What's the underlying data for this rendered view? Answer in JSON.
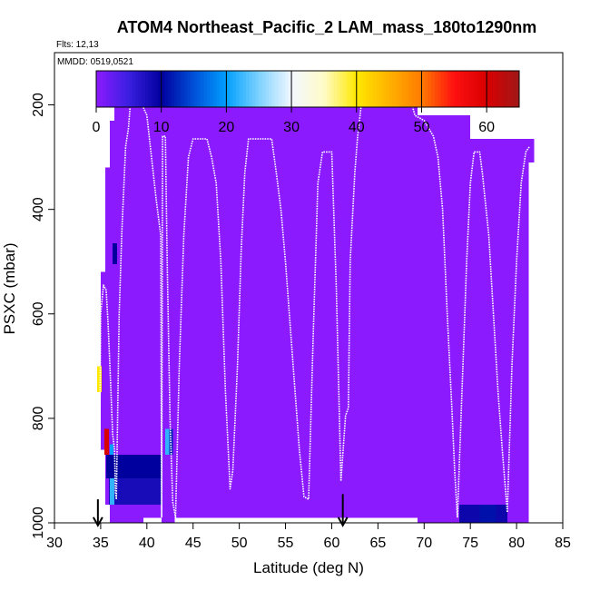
{
  "chart_data": {
    "type": "heatmap",
    "title": "ATOM4 Northeast_Pacific_2 LAM_mass_180to1290nm",
    "flights_label": "Flts: 12,13",
    "date_label": "MMDD: 0519,0521",
    "xlabel": "Latitude (deg N)",
    "ylabel": "PSXC (mbar)",
    "xlim": [
      30,
      85
    ],
    "ylim": [
      1000,
      100
    ],
    "x_ticks": [
      30,
      35,
      40,
      45,
      50,
      55,
      60,
      65,
      70,
      75,
      80,
      85
    ],
    "y_ticks": [
      200,
      400,
      600,
      800,
      1000
    ],
    "colorbar": {
      "range": [
        0,
        65
      ],
      "ticks": [
        0,
        10,
        20,
        30,
        40,
        50,
        60
      ],
      "stops": [
        {
          "v": 0,
          "color": "#8c1aff"
        },
        {
          "v": 5,
          "color": "#3a1fe0"
        },
        {
          "v": 10,
          "color": "#00009e"
        },
        {
          "v": 15,
          "color": "#0050d8"
        },
        {
          "v": 20,
          "color": "#009fff"
        },
        {
          "v": 25,
          "color": "#7dd1ff"
        },
        {
          "v": 30,
          "color": "#f2f8ff"
        },
        {
          "v": 35,
          "color": "#fffbc8"
        },
        {
          "v": 40,
          "color": "#ffe800"
        },
        {
          "v": 45,
          "color": "#ffb200"
        },
        {
          "v": 50,
          "color": "#ff7a00"
        },
        {
          "v": 55,
          "color": "#ff1010"
        },
        {
          "v": 60,
          "color": "#d80000"
        },
        {
          "v": 65,
          "color": "#a01818"
        }
      ]
    },
    "background_color": "#8c1aff",
    "cells": [
      {
        "lat": [
          39.6,
          69.3
        ],
        "p": [
          170,
          990
        ],
        "v": 0
      },
      {
        "lat": [
          36.5,
          39.6
        ],
        "p": [
          200,
          1000
        ],
        "v": 0
      },
      {
        "lat": [
          69.3,
          75.0
        ],
        "p": [
          220,
          1000
        ],
        "v": 0
      },
      {
        "lat": [
          75.0,
          81.3
        ],
        "p": [
          265,
          1000
        ],
        "v": 0
      },
      {
        "lat": [
          81.3,
          81.9
        ],
        "p": [
          265,
          310
        ],
        "v": 0
      },
      {
        "lat": [
          80.6,
          81.3
        ],
        "p": [
          310,
          465
        ],
        "v": 0
      },
      {
        "lat": [
          36.0,
          36.5
        ],
        "p": [
          230,
          1000
        ],
        "v": 0
      },
      {
        "lat": [
          35.5,
          36.0
        ],
        "p": [
          320,
          965
        ],
        "v": 0
      },
      {
        "lat": [
          35.0,
          35.5
        ],
        "p": [
          520,
          860
        ],
        "v": 0
      },
      {
        "lat": [
          41.6,
          43.0
        ],
        "p": [
          990,
          1000
        ],
        "v": 0
      },
      {
        "lat": [
          36.3,
          36.8
        ],
        "p": [
          465,
          505
        ],
        "v": 10
      },
      {
        "lat": [
          35.4,
          35.9
        ],
        "p": [
          820,
          870
        ],
        "v": 60
      },
      {
        "lat": [
          34.6,
          35.1
        ],
        "p": [
          700,
          750
        ],
        "v": 40
      },
      {
        "lat": [
          36.0,
          36.4
        ],
        "p": [
          850,
          870
        ],
        "v": 20
      },
      {
        "lat": [
          35.6,
          41.6
        ],
        "p": [
          870,
          915
        ],
        "v": 10
      },
      {
        "lat": [
          35.9,
          41.6
        ],
        "p": [
          915,
          965
        ],
        "v": 8
      },
      {
        "lat": [
          36.0,
          36.5
        ],
        "p": [
          915,
          965
        ],
        "v": 22
      },
      {
        "lat": [
          42.0,
          42.4
        ],
        "p": [
          820,
          870
        ],
        "v": 22
      },
      {
        "lat": [
          42.4,
          42.8
        ],
        "p": [
          820,
          870
        ],
        "v": 12
      },
      {
        "lat": [
          73.8,
          79.0
        ],
        "p": [
          965,
          1000
        ],
        "v": 9
      },
      {
        "lat": [
          76.0,
          77.8
        ],
        "p": [
          965,
          1000
        ],
        "v": 11
      }
    ],
    "flight_track": [
      [
        34.9,
        850
      ],
      [
        35.0,
        600
      ],
      [
        35.3,
        545
      ],
      [
        35.6,
        555
      ],
      [
        35.8,
        620
      ],
      [
        36.0,
        700
      ],
      [
        36.3,
        830
      ],
      [
        36.5,
        860
      ],
      [
        36.6,
        940
      ],
      [
        36.7,
        955
      ],
      [
        37.0,
        600
      ],
      [
        37.3,
        440
      ],
      [
        37.7,
        280
      ],
      [
        38.0,
        245
      ],
      [
        38.2,
        200
      ],
      [
        39.5,
        200
      ],
      [
        40.0,
        220
      ],
      [
        40.5,
        300
      ],
      [
        41.0,
        380
      ],
      [
        41.5,
        450
      ],
      [
        41.6,
        990
      ],
      [
        41.7,
        260
      ],
      [
        42.0,
        260
      ],
      [
        42.2,
        500
      ],
      [
        42.5,
        800
      ],
      [
        42.8,
        960
      ],
      [
        43.1,
        990
      ],
      [
        43.5,
        700
      ],
      [
        44.0,
        450
      ],
      [
        44.5,
        300
      ],
      [
        45.0,
        265
      ],
      [
        46.5,
        265
      ],
      [
        47.0,
        300
      ],
      [
        47.5,
        350
      ],
      [
        48.0,
        500
      ],
      [
        48.5,
        750
      ],
      [
        49.0,
        935
      ],
      [
        49.3,
        900
      ],
      [
        49.8,
        700
      ],
      [
        50.2,
        480
      ],
      [
        50.6,
        330
      ],
      [
        51.0,
        265
      ],
      [
        53.5,
        265
      ],
      [
        54.0,
        330
      ],
      [
        54.5,
        400
      ],
      [
        55.0,
        500
      ],
      [
        55.5,
        620
      ],
      [
        56.0,
        740
      ],
      [
        56.5,
        860
      ],
      [
        57.0,
        950
      ],
      [
        57.5,
        955
      ],
      [
        58.0,
        640
      ],
      [
        58.5,
        350
      ],
      [
        59.0,
        290
      ],
      [
        60.0,
        290
      ],
      [
        60.5,
        550
      ],
      [
        61.0,
        920
      ],
      [
        61.5,
        795
      ],
      [
        61.8,
        780
      ],
      [
        62.0,
        500
      ],
      [
        62.5,
        330
      ],
      [
        62.8,
        260
      ],
      [
        63.2,
        200
      ],
      [
        68.7,
        200
      ],
      [
        69.0,
        220
      ],
      [
        70.0,
        230
      ],
      [
        71.0,
        260
      ],
      [
        71.5,
        300
      ],
      [
        72.0,
        400
      ],
      [
        72.5,
        600
      ],
      [
        73.0,
        780
      ],
      [
        73.3,
        900
      ],
      [
        73.6,
        990
      ],
      [
        74.2,
        700
      ],
      [
        74.6,
        500
      ],
      [
        75.0,
        350
      ],
      [
        75.4,
        290
      ],
      [
        76.0,
        290
      ],
      [
        76.3,
        330
      ],
      [
        77.0,
        450
      ],
      [
        77.5,
        600
      ],
      [
        78.0,
        750
      ],
      [
        78.5,
        870
      ],
      [
        79.0,
        980
      ],
      [
        79.5,
        700
      ],
      [
        80.0,
        500
      ],
      [
        80.5,
        350
      ],
      [
        81.0,
        290
      ],
      [
        81.4,
        280
      ]
    ],
    "arrows": [
      {
        "lat": 34.7,
        "p_from": 955,
        "p_to": 1005
      },
      {
        "lat": 61.2,
        "p_from": 945,
        "p_to": 1005
      }
    ]
  }
}
